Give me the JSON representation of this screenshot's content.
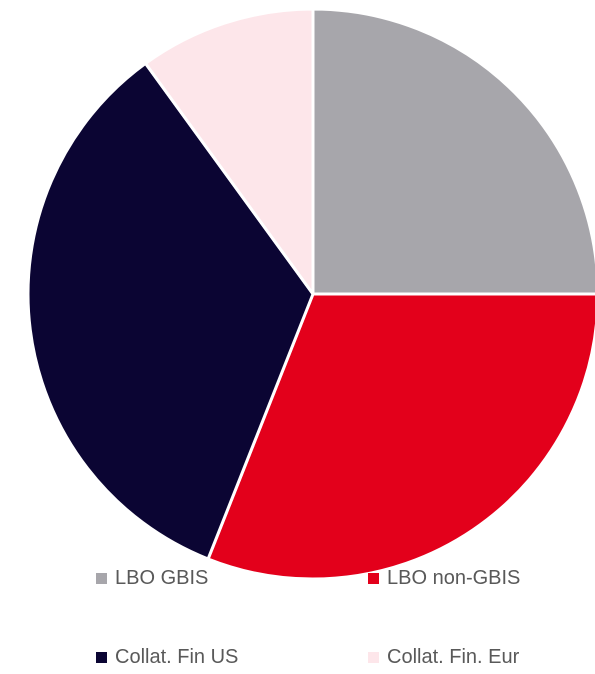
{
  "chart_data": {
    "type": "pie",
    "categories": [
      "LBO GBIS",
      "LBO non-GBIS",
      "Collat. Fin US",
      "Collat. Fin. Eur"
    ],
    "values": [
      25,
      31,
      34,
      10
    ],
    "colors": [
      "#a7a6ab",
      "#e3001b",
      "#0b0533",
      "#fde6ea"
    ],
    "slice_border_color": "#ffffff",
    "legend": {
      "placement": "bottom",
      "items": [
        {
          "label": "LBO GBIS",
          "color": "#a7a6ab"
        },
        {
          "label": "LBO non-GBIS",
          "color": "#e3001b"
        },
        {
          "label": "Collat. Fin US",
          "color": "#0b0533"
        },
        {
          "label": "Collat. Fin. Eur",
          "color": "#fde6ea"
        }
      ]
    }
  }
}
